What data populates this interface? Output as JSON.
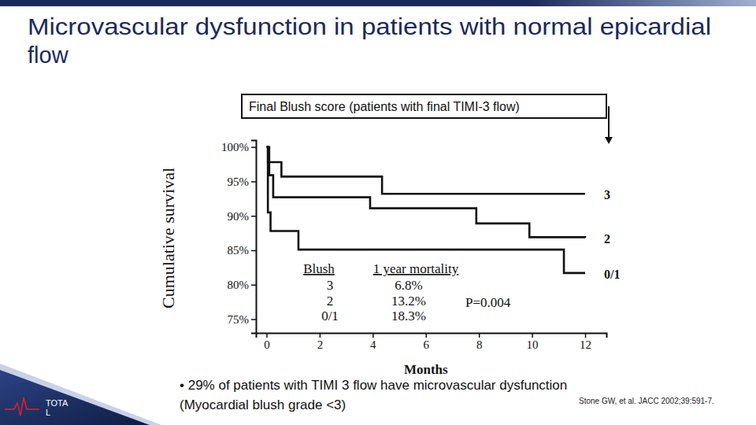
{
  "slide": {
    "title_lines": [
      "Microvascular dysfunction in patients with normal epicardial",
      "flow"
    ],
    "bullet_lines": [
      "• 29% of patients with TIMI 3 flow have microvascular dysfunction",
      "(Myocardial blush grade <3)"
    ],
    "citation": "Stone GW, et al. JACC 2002;39:591-7.",
    "logo_lines": [
      "TOTA",
      "L"
    ]
  },
  "chart_data": {
    "type": "step",
    "title": "Final Blush score (patients with final TIMI-3 flow)",
    "x_label": "Months",
    "y_label": "Cumulative survival",
    "xlim": [
      -0.4,
      12.8
    ],
    "xticks": [
      0,
      2,
      4,
      6,
      8,
      10,
      12
    ],
    "ylim": [
      73,
      101
    ],
    "yticks": [
      {
        "value": 75,
        "label": "75%"
      },
      {
        "value": 80,
        "label": "80%"
      },
      {
        "value": 85,
        "label": "85%"
      },
      {
        "value": 90,
        "label": "90%"
      },
      {
        "value": 95,
        "label": "95%"
      },
      {
        "value": 100,
        "label": "100%"
      }
    ],
    "grid": false,
    "series": [
      {
        "name": "3",
        "color": "#111111",
        "line_style": "solid",
        "x": [
          0,
          0.05,
          0.56,
          4.35,
          12
        ],
        "values": [
          100,
          97.8,
          95.7,
          93.2,
          93.2
        ]
      },
      {
        "name": "2",
        "color": "#111111",
        "line_style": "solid",
        "x": [
          0,
          0.1,
          0.25,
          3.9,
          7.9,
          9.9,
          12
        ],
        "values": [
          100,
          95.9,
          92.7,
          91.1,
          88.9,
          86.9,
          86.8
        ]
      },
      {
        "name": "0/1",
        "color": "#111111",
        "line_style": "solid",
        "x": [
          0,
          0.05,
          0.15,
          1.2,
          11.2,
          12
        ],
        "values": [
          100,
          90.5,
          87.8,
          85.1,
          81.7,
          81.7
        ]
      }
    ],
    "table": {
      "header": [
        "Blush",
        "1 year mortality"
      ],
      "rows": [
        [
          "3",
          "6.8%"
        ],
        [
          "2",
          "13.2%"
        ],
        [
          "0/1",
          "18.3%"
        ]
      ]
    },
    "annotation": "P=0.004"
  }
}
